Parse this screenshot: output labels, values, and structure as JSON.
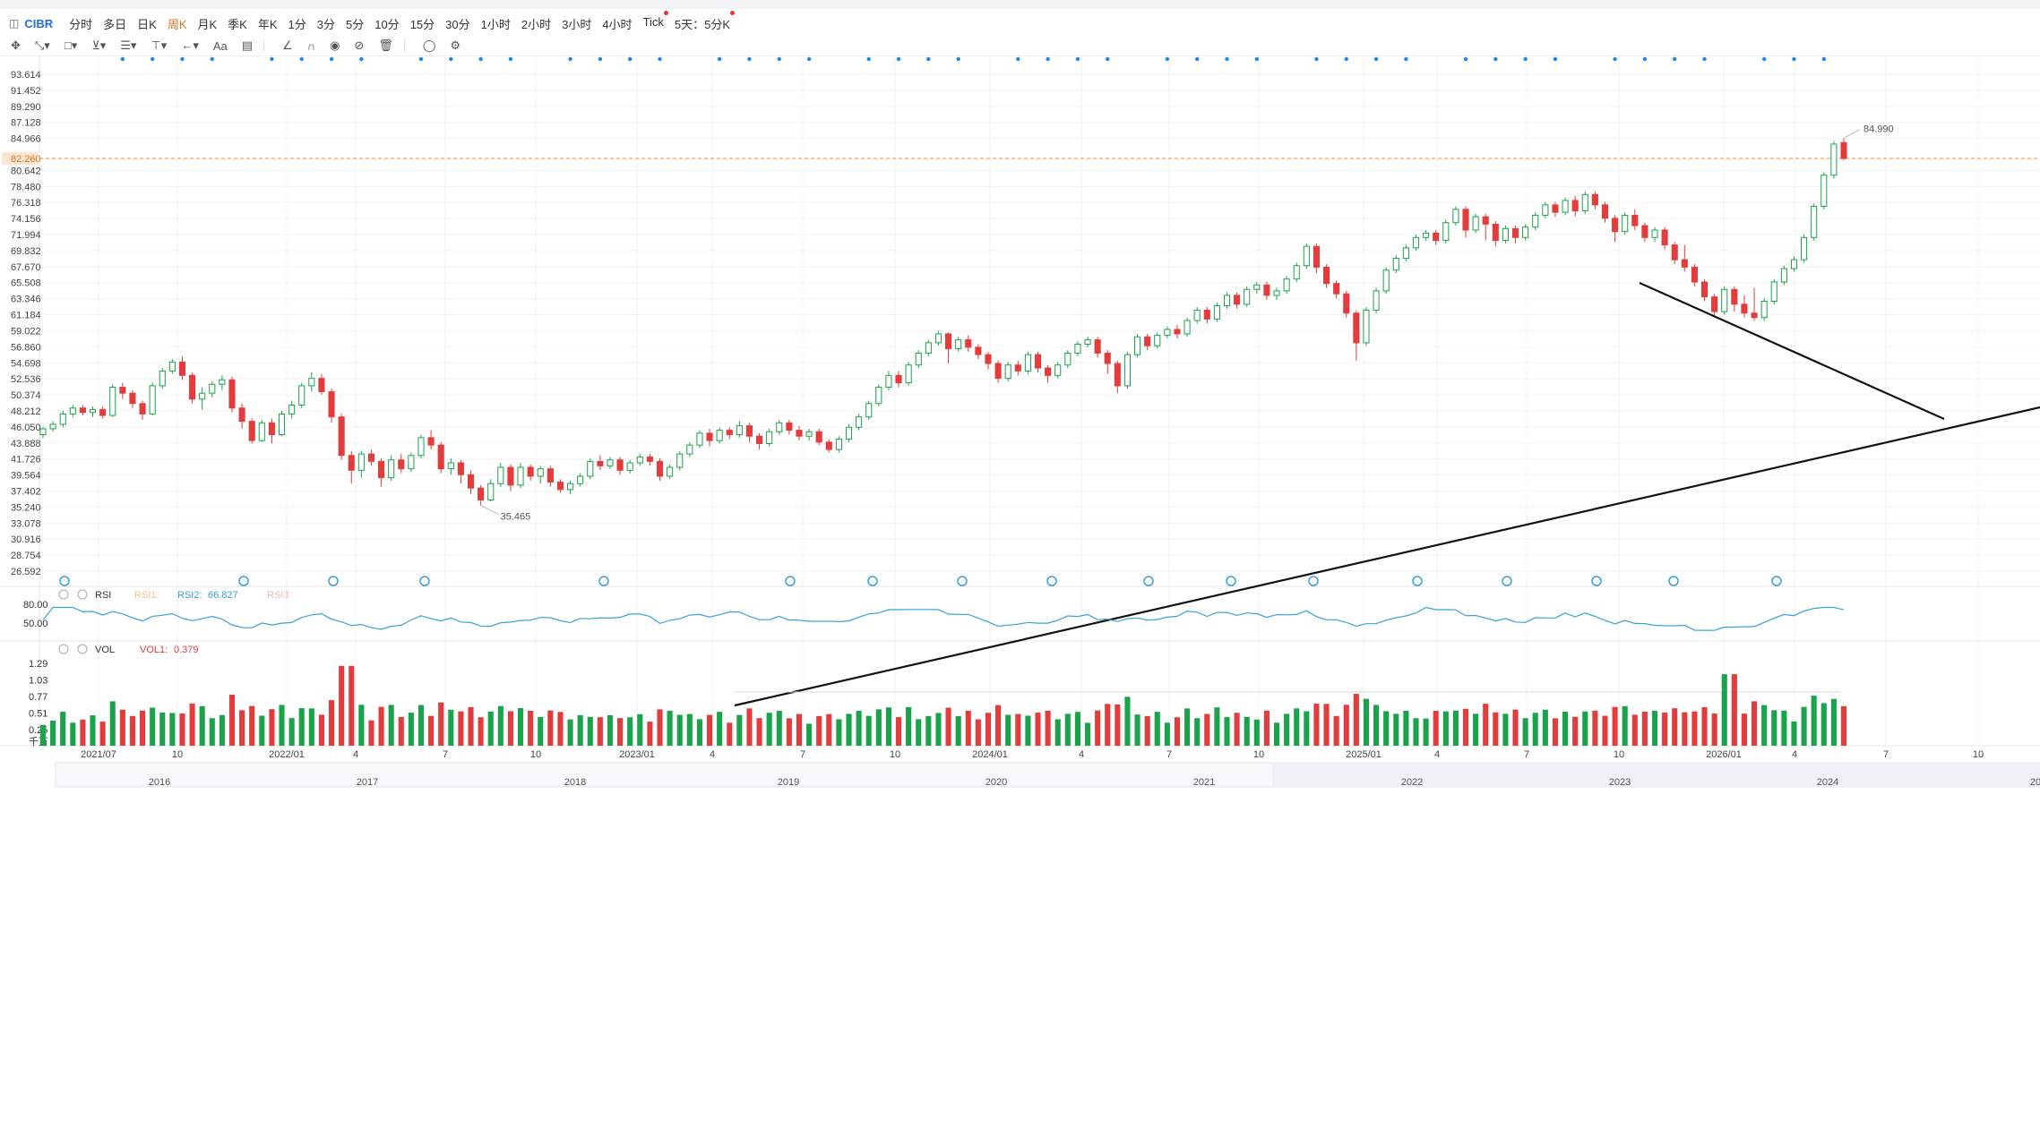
{
  "toolbar": {
    "symbol": "CIBR",
    "periods": [
      "分时",
      "多日",
      "日K",
      "周K",
      "月K",
      "季K",
      "年K",
      "1分",
      "3分",
      "5分",
      "10分",
      "15分",
      "30分",
      "1小时",
      "2小时",
      "3小时",
      "4小时",
      "Tick",
      "5天：5分K"
    ],
    "active_period": "周K",
    "periods_with_dot": [
      "Tick",
      "5天：5分K"
    ]
  },
  "drawing_tools": [
    "move-tool",
    "line-tool",
    "shape-tool",
    "pattern-tool",
    "fib-tool",
    "measure-tool",
    "arrow-tool",
    "text-tool",
    "note-tool",
    "angle-tool",
    "magnet-tool",
    "eye-tool",
    "hide-tool",
    "trash-tool",
    "link-tool",
    "settings-tool"
  ],
  "text_tool_label": "Aa",
  "price_panel": {
    "y_ticks": [
      "93.614",
      "91.452",
      "89.290",
      "87.128",
      "84.966",
      "82.260",
      "80.642",
      "78.480",
      "76.318",
      "74.156",
      "71.994",
      "69.832",
      "67.670",
      "65.508",
      "63.346",
      "61.184",
      "59.022",
      "56.860",
      "54.698",
      "52.536",
      "50.374",
      "48.212",
      "46.050",
      "43.888",
      "41.726",
      "39.564",
      "37.402",
      "35.240",
      "33.078",
      "30.916",
      "28.754",
      "26.592"
    ],
    "last_price": "82.260",
    "high_label": "84.990",
    "low_label": "35.465",
    "colors": {
      "up": "#1aa34a",
      "down": "#e23c3c",
      "last_line": "#f08c2e",
      "dot": "#1e88e5"
    }
  },
  "rsi_panel": {
    "title": "RSI",
    "rsi1_label": "RSI1:",
    "rsi2_label": "RSI2:",
    "rsi2_value": "66.827",
    "rsi3_label": "RSI3:",
    "y_ticks": [
      "80.00",
      "50.00"
    ],
    "line_color": "#3aa0d8"
  },
  "vol_panel": {
    "title": "VOL",
    "vol1_label": "VOL1:",
    "vol1_value": "0.379",
    "y_ticks": [
      "1.29",
      "1.03",
      "0.77",
      "0.51",
      "0.25"
    ],
    "unit": "千万"
  },
  "time_axis": [
    "2021/07",
    "10",
    "2022/01",
    "4",
    "7",
    "10",
    "2023/01",
    "4",
    "7",
    "10",
    "2024/01",
    "4",
    "7",
    "10",
    "2025/01",
    "4",
    "7",
    "10",
    "2026/01",
    "4",
    "7",
    "10"
  ],
  "overview_axis": [
    "2016",
    "2017",
    "2018",
    "2019",
    "2020",
    "2021",
    "2022",
    "2023",
    "2024",
    "20"
  ],
  "chart_data": {
    "type": "candlestick",
    "interval": "weekly",
    "y_range": [
      26.592,
      93.614
    ],
    "y_scale": "linear",
    "grid": true,
    "annotated_high": 84.99,
    "annotated_low": 35.465,
    "last": 82.26,
    "candles": [
      [
        45.0,
        45.8,
        44.6,
        46.0
      ],
      [
        45.8,
        46.4,
        45.4,
        46.8
      ],
      [
        46.4,
        47.8,
        46.0,
        48.2
      ],
      [
        47.8,
        48.6,
        47.4,
        49.0
      ],
      [
        48.6,
        48.0,
        47.6,
        49.0
      ],
      [
        48.0,
        48.4,
        47.4,
        48.8
      ],
      [
        48.4,
        47.6,
        47.2,
        48.8
      ],
      [
        47.6,
        51.4,
        47.4,
        51.8
      ],
      [
        51.4,
        50.6,
        49.8,
        52.0
      ],
      [
        50.6,
        49.2,
        48.6,
        51.0
      ],
      [
        49.2,
        47.8,
        47.0,
        49.6
      ],
      [
        47.8,
        51.6,
        47.6,
        52.0
      ],
      [
        51.6,
        53.6,
        51.2,
        54.0
      ],
      [
        53.6,
        54.8,
        53.2,
        55.2
      ],
      [
        54.8,
        53.0,
        52.4,
        55.6
      ],
      [
        53.0,
        49.8,
        49.2,
        53.4
      ],
      [
        49.8,
        50.6,
        48.4,
        51.4
      ],
      [
        50.6,
        51.8,
        50.0,
        52.2
      ],
      [
        51.8,
        52.4,
        51.0,
        53.0
      ],
      [
        52.4,
        48.6,
        48.0,
        52.8
      ],
      [
        48.6,
        46.8,
        45.8,
        49.2
      ],
      [
        46.8,
        44.2,
        43.8,
        47.2
      ],
      [
        44.2,
        46.6,
        44.0,
        47.0
      ],
      [
        46.6,
        45.0,
        43.8,
        47.2
      ],
      [
        45.0,
        47.8,
        44.8,
        48.2
      ],
      [
        47.8,
        49.0,
        47.2,
        49.6
      ],
      [
        49.0,
        51.6,
        48.6,
        52.0
      ],
      [
        51.6,
        52.6,
        50.8,
        53.4
      ],
      [
        52.6,
        50.8,
        50.4,
        53.2
      ],
      [
        50.8,
        47.4,
        46.6,
        51.2
      ],
      [
        47.4,
        42.2,
        41.6,
        47.8
      ],
      [
        42.2,
        40.2,
        38.4,
        42.8
      ],
      [
        40.2,
        42.4,
        39.2,
        42.8
      ],
      [
        42.4,
        41.4,
        40.8,
        43.0
      ],
      [
        41.4,
        39.2,
        38.0,
        41.8
      ],
      [
        39.2,
        41.6,
        38.8,
        42.2
      ],
      [
        41.6,
        40.4,
        39.8,
        42.4
      ],
      [
        40.4,
        42.2,
        40.0,
        42.6
      ],
      [
        42.2,
        44.6,
        41.8,
        45.0
      ],
      [
        44.6,
        43.6,
        43.0,
        45.6
      ],
      [
        43.6,
        40.4,
        39.8,
        44.0
      ],
      [
        40.4,
        41.2,
        39.6,
        41.8
      ],
      [
        41.2,
        39.6,
        38.4,
        41.6
      ],
      [
        39.6,
        37.8,
        37.0,
        40.2
      ],
      [
        37.8,
        36.2,
        35.465,
        38.2
      ],
      [
        36.2,
        38.4,
        36.0,
        39.0
      ],
      [
        38.4,
        40.6,
        38.0,
        41.2
      ],
      [
        40.6,
        38.2,
        37.4,
        41.0
      ],
      [
        38.2,
        40.6,
        37.8,
        41.2
      ],
      [
        40.6,
        39.4,
        38.8,
        41.0
      ],
      [
        39.4,
        40.4,
        38.4,
        40.8
      ],
      [
        40.4,
        38.6,
        38.0,
        40.8
      ],
      [
        38.6,
        37.6,
        37.2,
        39.0
      ],
      [
        37.6,
        38.4,
        37.0,
        38.8
      ],
      [
        38.4,
        39.4,
        38.0,
        39.8
      ],
      [
        39.4,
        41.4,
        39.0,
        41.8
      ],
      [
        41.4,
        40.8,
        40.2,
        42.2
      ],
      [
        40.8,
        41.6,
        40.4,
        42.0
      ],
      [
        41.6,
        40.2,
        39.6,
        42.0
      ],
      [
        40.2,
        41.2,
        39.8,
        41.6
      ],
      [
        41.2,
        42.0,
        40.8,
        42.4
      ],
      [
        42.0,
        41.4,
        40.8,
        42.4
      ],
      [
        41.4,
        39.4,
        38.8,
        41.8
      ],
      [
        39.4,
        40.6,
        39.0,
        41.0
      ],
      [
        40.6,
        42.4,
        40.2,
        42.8
      ],
      [
        42.4,
        43.6,
        42.0,
        44.0
      ],
      [
        43.6,
        45.2,
        43.2,
        45.6
      ],
      [
        45.2,
        44.2,
        43.4,
        45.8
      ],
      [
        44.2,
        45.6,
        43.8,
        46.0
      ],
      [
        45.6,
        45.0,
        44.4,
        46.0
      ],
      [
        45.0,
        46.2,
        44.6,
        46.8
      ],
      [
        46.2,
        44.8,
        44.0,
        46.6
      ],
      [
        44.8,
        43.8,
        43.0,
        45.2
      ],
      [
        43.8,
        45.4,
        43.4,
        45.8
      ],
      [
        45.4,
        46.6,
        45.0,
        47.0
      ],
      [
        46.6,
        45.6,
        45.0,
        47.0
      ],
      [
        45.6,
        44.8,
        44.2,
        46.2
      ],
      [
        44.8,
        45.4,
        44.2,
        45.8
      ],
      [
        45.4,
        44.0,
        43.6,
        45.8
      ],
      [
        44.0,
        43.0,
        42.6,
        44.4
      ],
      [
        43.0,
        44.4,
        42.6,
        44.8
      ],
      [
        44.4,
        46.0,
        44.0,
        46.4
      ],
      [
        46.0,
        47.4,
        45.6,
        47.8
      ],
      [
        47.4,
        49.2,
        47.0,
        49.6
      ],
      [
        49.2,
        51.4,
        48.8,
        51.8
      ],
      [
        51.4,
        53.0,
        51.0,
        53.6
      ],
      [
        53.0,
        52.0,
        51.4,
        53.6
      ],
      [
        52.0,
        54.4,
        51.6,
        54.8
      ],
      [
        54.4,
        56.0,
        54.0,
        56.4
      ],
      [
        56.0,
        57.4,
        55.6,
        57.8
      ],
      [
        57.4,
        58.6,
        57.0,
        59.0
      ],
      [
        58.6,
        56.6,
        54.6,
        58.8
      ],
      [
        56.6,
        57.8,
        56.2,
        58.2
      ],
      [
        57.8,
        56.8,
        56.2,
        58.4
      ],
      [
        56.8,
        55.8,
        55.2,
        57.2
      ],
      [
        55.8,
        54.6,
        53.8,
        56.2
      ],
      [
        54.6,
        52.6,
        52.0,
        55.0
      ],
      [
        52.6,
        54.4,
        52.2,
        54.8
      ],
      [
        54.4,
        53.6,
        53.0,
        55.0
      ],
      [
        53.6,
        55.8,
        53.2,
        56.2
      ],
      [
        55.8,
        54.0,
        53.4,
        56.2
      ],
      [
        54.0,
        53.0,
        52.0,
        54.4
      ],
      [
        53.0,
        54.4,
        52.6,
        54.8
      ],
      [
        54.4,
        56.0,
        54.0,
        56.4
      ],
      [
        56.0,
        57.2,
        55.6,
        57.6
      ],
      [
        57.2,
        57.8,
        56.8,
        58.2
      ],
      [
        57.8,
        56.0,
        55.4,
        58.2
      ],
      [
        56.0,
        54.6,
        53.2,
        56.4
      ],
      [
        54.6,
        51.6,
        50.6,
        55.0
      ],
      [
        51.6,
        55.8,
        51.2,
        56.2
      ],
      [
        55.8,
        58.2,
        55.4,
        58.6
      ],
      [
        58.2,
        57.0,
        56.4,
        58.6
      ],
      [
        57.0,
        58.4,
        56.6,
        58.8
      ],
      [
        58.4,
        59.2,
        58.0,
        59.6
      ],
      [
        59.2,
        58.6,
        58.0,
        59.8
      ],
      [
        58.6,
        60.4,
        58.2,
        60.8
      ],
      [
        60.4,
        61.8,
        60.0,
        62.2
      ],
      [
        61.8,
        60.6,
        60.0,
        62.2
      ],
      [
        60.6,
        62.4,
        60.2,
        62.8
      ],
      [
        62.4,
        63.8,
        62.0,
        64.2
      ],
      [
        63.8,
        62.6,
        62.0,
        64.2
      ],
      [
        62.6,
        64.6,
        62.2,
        65.0
      ],
      [
        64.6,
        65.2,
        64.0,
        65.6
      ],
      [
        65.2,
        63.8,
        63.2,
        65.6
      ],
      [
        63.8,
        64.4,
        63.2,
        64.8
      ],
      [
        64.4,
        66.0,
        64.0,
        66.4
      ],
      [
        66.0,
        67.8,
        65.6,
        68.2
      ],
      [
        67.8,
        70.4,
        67.4,
        70.8
      ],
      [
        70.4,
        67.6,
        66.8,
        70.8
      ],
      [
        67.6,
        65.4,
        64.8,
        68.0
      ],
      [
        65.4,
        64.0,
        63.4,
        65.8
      ],
      [
        64.0,
        61.4,
        60.8,
        64.4
      ],
      [
        61.4,
        57.4,
        55.0,
        61.8
      ],
      [
        57.4,
        61.8,
        57.0,
        62.2
      ],
      [
        61.8,
        64.4,
        61.4,
        64.8
      ],
      [
        64.4,
        67.2,
        64.0,
        67.6
      ],
      [
        67.2,
        68.8,
        66.8,
        69.2
      ],
      [
        68.8,
        70.2,
        68.4,
        70.6
      ],
      [
        70.2,
        71.6,
        69.8,
        72.0
      ],
      [
        71.6,
        72.2,
        71.2,
        72.6
      ],
      [
        72.2,
        71.2,
        70.6,
        72.6
      ],
      [
        71.2,
        73.6,
        70.8,
        74.0
      ],
      [
        73.6,
        75.4,
        73.2,
        75.8
      ],
      [
        75.4,
        72.6,
        71.6,
        75.8
      ],
      [
        72.6,
        74.4,
        72.2,
        74.8
      ],
      [
        74.4,
        73.4,
        71.2,
        74.8
      ],
      [
        73.4,
        71.2,
        70.4,
        73.8
      ],
      [
        71.2,
        72.8,
        70.8,
        73.2
      ],
      [
        72.8,
        71.6,
        70.8,
        73.2
      ],
      [
        71.6,
        73.0,
        71.2,
        73.4
      ],
      [
        73.0,
        74.6,
        72.6,
        75.0
      ],
      [
        74.6,
        76.0,
        74.2,
        76.4
      ],
      [
        76.0,
        75.0,
        74.4,
        76.4
      ],
      [
        75.0,
        76.6,
        74.6,
        77.0
      ],
      [
        76.6,
        75.2,
        74.4,
        77.2
      ],
      [
        75.2,
        77.4,
        74.8,
        77.8
      ],
      [
        77.4,
        76.0,
        75.4,
        77.8
      ],
      [
        76.0,
        74.2,
        73.6,
        76.4
      ],
      [
        74.2,
        72.4,
        71.0,
        74.6
      ],
      [
        72.4,
        74.6,
        72.0,
        75.0
      ],
      [
        74.6,
        73.2,
        72.6,
        75.4
      ],
      [
        73.2,
        71.6,
        71.0,
        73.6
      ],
      [
        71.6,
        72.6,
        71.0,
        73.0
      ],
      [
        72.6,
        70.6,
        70.0,
        73.0
      ],
      [
        70.6,
        68.6,
        68.0,
        71.0
      ],
      [
        68.6,
        67.6,
        67.0,
        70.6
      ],
      [
        67.6,
        65.6,
        65.0,
        68.0
      ],
      [
        65.6,
        63.6,
        63.0,
        66.0
      ],
      [
        63.6,
        61.6,
        60.8,
        64.0
      ],
      [
        61.6,
        64.6,
        61.2,
        65.0
      ],
      [
        64.6,
        62.6,
        61.6,
        65.0
      ],
      [
        62.6,
        61.4,
        60.8,
        63.8
      ],
      [
        61.4,
        60.8,
        60.4,
        64.8
      ],
      [
        60.8,
        63.0,
        60.4,
        63.4
      ],
      [
        63.0,
        65.6,
        62.6,
        66.0
      ],
      [
        65.6,
        67.4,
        65.2,
        67.8
      ],
      [
        67.4,
        68.6,
        67.0,
        69.0
      ],
      [
        68.6,
        71.6,
        68.2,
        72.0
      ],
      [
        71.6,
        75.8,
        71.2,
        76.2
      ],
      [
        75.8,
        80.0,
        75.4,
        80.4
      ],
      [
        80.0,
        84.2,
        79.6,
        84.6
      ],
      [
        84.4,
        82.26,
        82.0,
        84.99
      ]
    ],
    "x_labels": [
      "2021/07",
      "10",
      "2022/01",
      "4",
      "7",
      "10",
      "2023/01",
      "4",
      "7",
      "10",
      "2024/01",
      "4",
      "7",
      "10",
      "2025/01",
      "4",
      "7",
      "10",
      "2026/01",
      "4",
      "7",
      "10"
    ]
  }
}
